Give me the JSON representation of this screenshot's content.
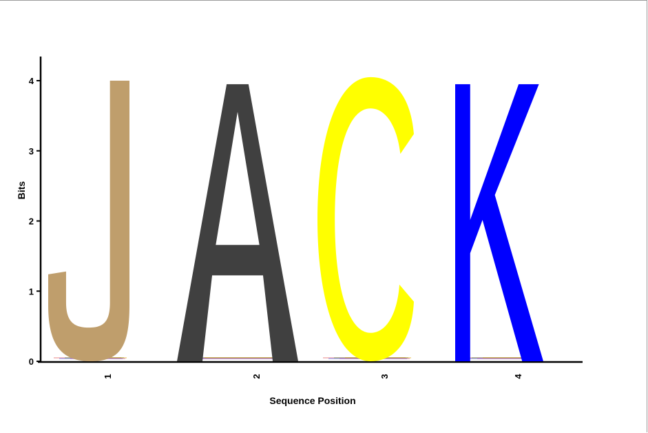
{
  "chart_data": {
    "type": "sequence-logo",
    "xlabel": "Sequence Position",
    "ylabel": "Bits",
    "ylim": [
      0,
      4
    ],
    "yticks": [
      "0",
      "1",
      "2",
      "3",
      "4"
    ],
    "positions": [
      {
        "label": "1",
        "letter": "J",
        "color": "#bf9e6c",
        "bits": 4.0
      },
      {
        "label": "2",
        "letter": "A",
        "color": "#404040",
        "bits": 3.95
      },
      {
        "label": "3",
        "letter": "C",
        "color": "#ffff00",
        "bits": 4.05
      },
      {
        "label": "4",
        "letter": "K",
        "color": "#0000ff",
        "bits": 3.95
      }
    ],
    "background_letter_colors": [
      "#e05050",
      "#5050e0",
      "#50a050",
      "#c050c0",
      "#e0a000"
    ]
  }
}
